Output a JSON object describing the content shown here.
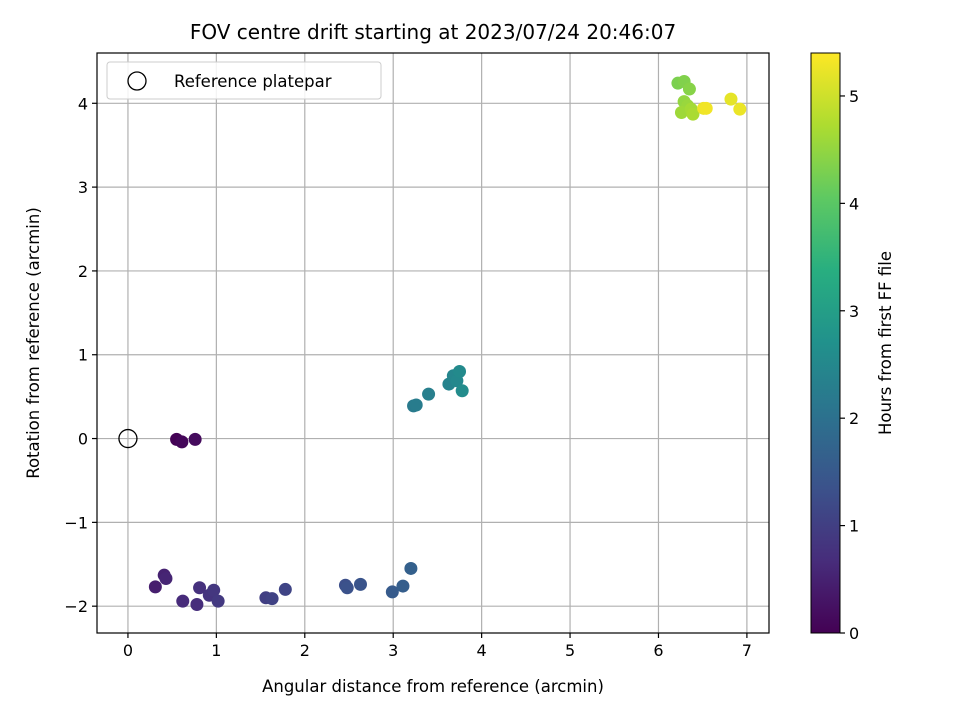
{
  "chart_data": {
    "type": "scatter",
    "title": "FOV centre drift starting at 2023/07/24 20:46:07",
    "xlabel": "Angular distance from reference (arcmin)",
    "ylabel": "Rotation from reference (arcmin)",
    "xlim": [
      -0.35,
      7.25
    ],
    "ylim": [
      -2.32,
      4.6
    ],
    "xticks": [
      0,
      1,
      2,
      3,
      4,
      5,
      6,
      7
    ],
    "yticks": [
      -2,
      -1,
      0,
      1,
      2,
      3,
      4
    ],
    "grid": true,
    "legend": {
      "position": "top-left",
      "entries": [
        "Reference platepar"
      ]
    },
    "reference_point": {
      "label": "Reference platepar",
      "x": 0,
      "y": 0
    },
    "colorbar": {
      "label": "Hours from first FF file",
      "ticks": [
        0,
        1,
        2,
        3,
        4,
        5
      ],
      "range": [
        0,
        5.4
      ],
      "colormap": "viridis"
    },
    "points": [
      {
        "x": 0.55,
        "y": -0.01,
        "c": 0.02
      },
      {
        "x": 0.61,
        "y": -0.04,
        "c": 0.08
      },
      {
        "x": 0.76,
        "y": -0.01,
        "c": 0.15
      },
      {
        "x": 0.31,
        "y": -1.77,
        "c": 0.45
      },
      {
        "x": 0.41,
        "y": -1.63,
        "c": 0.5
      },
      {
        "x": 0.43,
        "y": -1.67,
        "c": 0.55
      },
      {
        "x": 0.62,
        "y": -1.94,
        "c": 0.65
      },
      {
        "x": 0.78,
        "y": -1.98,
        "c": 0.7
      },
      {
        "x": 0.81,
        "y": -1.78,
        "c": 0.75
      },
      {
        "x": 0.92,
        "y": -1.87,
        "c": 0.8
      },
      {
        "x": 0.97,
        "y": -1.81,
        "c": 0.85
      },
      {
        "x": 1.02,
        "y": -1.94,
        "c": 0.9
      },
      {
        "x": 1.56,
        "y": -1.9,
        "c": 1.0
      },
      {
        "x": 1.63,
        "y": -1.91,
        "c": 1.05
      },
      {
        "x": 1.78,
        "y": -1.8,
        "c": 1.1
      },
      {
        "x": 2.46,
        "y": -1.75,
        "c": 1.3
      },
      {
        "x": 2.48,
        "y": -1.78,
        "c": 1.35
      },
      {
        "x": 2.63,
        "y": -1.74,
        "c": 1.4
      },
      {
        "x": 2.99,
        "y": -1.83,
        "c": 1.55
      },
      {
        "x": 3.11,
        "y": -1.76,
        "c": 1.6
      },
      {
        "x": 3.2,
        "y": -1.55,
        "c": 1.65
      },
      {
        "x": 3.23,
        "y": 0.39,
        "c": 2.2
      },
      {
        "x": 3.26,
        "y": 0.4,
        "c": 2.25
      },
      {
        "x": 3.4,
        "y": 0.53,
        "c": 2.3
      },
      {
        "x": 3.63,
        "y": 0.65,
        "c": 2.4
      },
      {
        "x": 3.68,
        "y": 0.75,
        "c": 2.45
      },
      {
        "x": 3.72,
        "y": 0.69,
        "c": 2.5
      },
      {
        "x": 3.75,
        "y": 0.8,
        "c": 2.55
      },
      {
        "x": 3.78,
        "y": 0.57,
        "c": 2.6
      },
      {
        "x": 6.22,
        "y": 4.24,
        "c": 4.3
      },
      {
        "x": 6.29,
        "y": 4.26,
        "c": 4.35
      },
      {
        "x": 6.35,
        "y": 4.17,
        "c": 4.4
      },
      {
        "x": 6.29,
        "y": 4.02,
        "c": 4.5
      },
      {
        "x": 6.33,
        "y": 3.97,
        "c": 4.55
      },
      {
        "x": 6.26,
        "y": 3.89,
        "c": 4.6
      },
      {
        "x": 6.37,
        "y": 3.93,
        "c": 4.65
      },
      {
        "x": 6.39,
        "y": 3.87,
        "c": 4.7
      },
      {
        "x": 6.51,
        "y": 3.94,
        "c": 5.25
      },
      {
        "x": 6.54,
        "y": 3.94,
        "c": 5.3
      },
      {
        "x": 6.82,
        "y": 4.05,
        "c": 5.2
      },
      {
        "x": 6.92,
        "y": 3.93,
        "c": 5.25
      }
    ]
  }
}
